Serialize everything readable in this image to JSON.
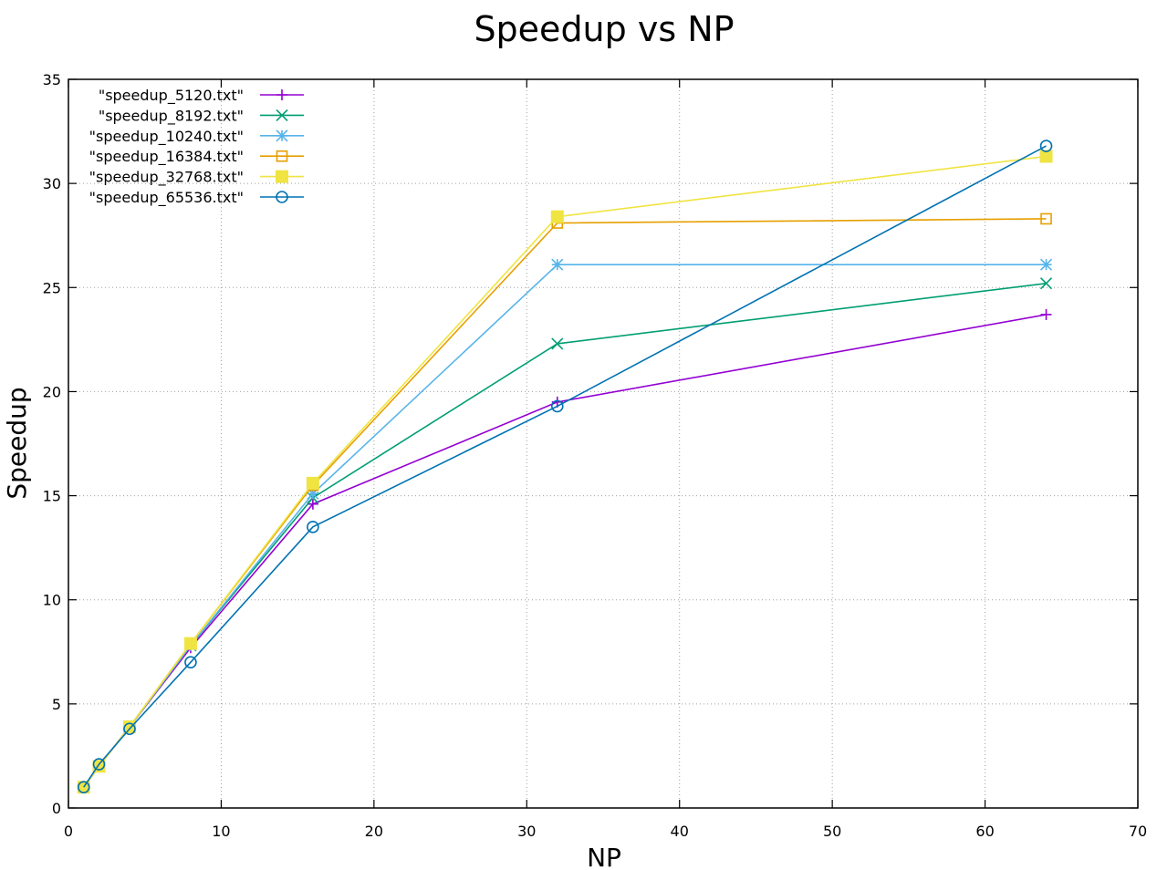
{
  "chart_data": {
    "type": "line",
    "title": "Speedup vs NP",
    "xlabel": "NP",
    "ylabel": "Speedup",
    "xlim": [
      0,
      70
    ],
    "ylim": [
      0,
      35
    ],
    "xticks": [
      0,
      10,
      20,
      30,
      40,
      50,
      60,
      70
    ],
    "yticks": [
      0,
      5,
      10,
      15,
      20,
      25,
      30,
      35
    ],
    "grid": true,
    "legend_position": "top-left",
    "series": [
      {
        "name": "\"speedup_5120.txt\"",
        "color": "#9400d3",
        "marker": "plus",
        "x": [
          1,
          2,
          4,
          8,
          16,
          32,
          64
        ],
        "y": [
          1.0,
          2.0,
          3.9,
          7.7,
          14.6,
          19.5,
          23.7
        ]
      },
      {
        "name": "\"speedup_8192.txt\"",
        "color": "#009e73",
        "marker": "cross",
        "x": [
          1,
          2,
          4,
          8,
          16,
          32,
          64
        ],
        "y": [
          1.0,
          2.0,
          3.9,
          7.8,
          14.9,
          22.3,
          25.2
        ]
      },
      {
        "name": "\"speedup_10240.txt\"",
        "color": "#56b4e9",
        "marker": "star",
        "x": [
          1,
          2,
          4,
          8,
          16,
          32,
          64
        ],
        "y": [
          1.0,
          2.0,
          3.9,
          7.8,
          15.1,
          26.1,
          26.1
        ]
      },
      {
        "name": "\"speedup_16384.txt\"",
        "color": "#e69f00",
        "marker": "square-open",
        "x": [
          1,
          2,
          4,
          8,
          16,
          32,
          64
        ],
        "y": [
          1.0,
          2.0,
          3.9,
          7.9,
          15.5,
          28.1,
          28.3
        ]
      },
      {
        "name": "\"speedup_32768.txt\"",
        "color": "#f0e442",
        "marker": "square-filled",
        "x": [
          1,
          2,
          4,
          8,
          16,
          32,
          64
        ],
        "y": [
          1.0,
          2.0,
          3.9,
          7.9,
          15.6,
          28.4,
          31.3
        ]
      },
      {
        "name": "\"speedup_65536.txt\"",
        "color": "#0072b2",
        "marker": "circle-open",
        "x": [
          1,
          2,
          4,
          8,
          16,
          32,
          64
        ],
        "y": [
          1.0,
          2.1,
          3.8,
          7.0,
          13.5,
          19.3,
          31.8
        ]
      }
    ]
  }
}
